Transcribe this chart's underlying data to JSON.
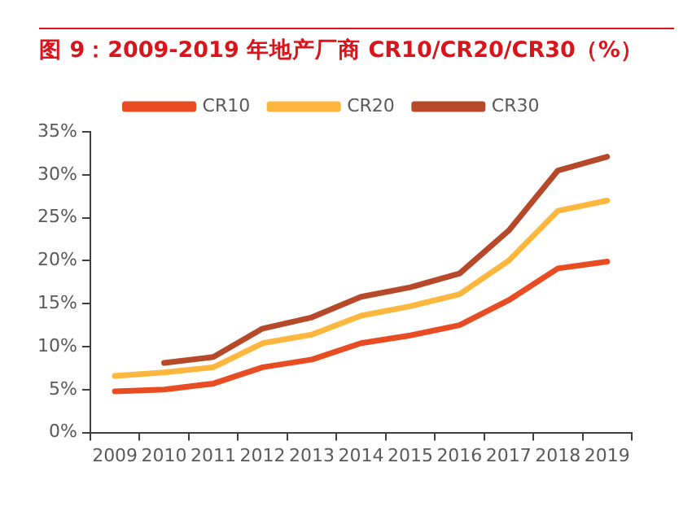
{
  "chart_data": {
    "type": "line",
    "title": "图 9：2009-2019 年地产厂商 CR10/CR20/CR30（%）",
    "categories": [
      "2009",
      "2010",
      "2011",
      "2012",
      "2013",
      "2014",
      "2015",
      "2016",
      "2017",
      "2018",
      "2019"
    ],
    "series": [
      {
        "name": "CR10",
        "color": "#e84c22",
        "values": [
          4.8,
          5.0,
          5.7,
          7.6,
          8.5,
          10.4,
          11.3,
          12.5,
          15.4,
          19.1,
          19.9
        ]
      },
      {
        "name": "CR20",
        "color": "#fdb73f",
        "values": [
          6.6,
          7.0,
          7.6,
          10.4,
          11.4,
          13.6,
          14.7,
          16.1,
          20.0,
          25.8,
          27.0
        ]
      },
      {
        "name": "CR30",
        "color": "#b5492a",
        "values": [
          null,
          8.1,
          8.8,
          12.1,
          13.4,
          15.8,
          16.9,
          18.5,
          23.5,
          30.5,
          32.1
        ]
      }
    ],
    "ylim": [
      0,
      35
    ],
    "yticks": [
      {
        "value": 0,
        "label": "0%"
      },
      {
        "value": 5,
        "label": "5%"
      },
      {
        "value": 10,
        "label": "10%"
      },
      {
        "value": 15,
        "label": "15%"
      },
      {
        "value": 20,
        "label": "20%"
      },
      {
        "value": 25,
        "label": "25%"
      },
      {
        "value": 30,
        "label": "30%"
      },
      {
        "value": 35,
        "label": "35%"
      }
    ],
    "grid": false,
    "legend": "top",
    "marker": "none",
    "line_style": "solid"
  }
}
